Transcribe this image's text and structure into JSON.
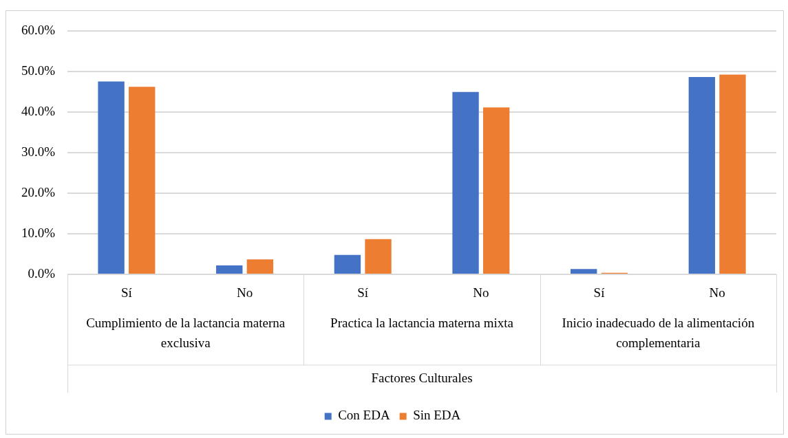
{
  "chart_data": {
    "type": "bar",
    "categories": [
      "Sí",
      "No",
      "Sí",
      "No",
      "Sí",
      "No"
    ],
    "series": [
      {
        "name": "Con EDA",
        "color": "#4472c4",
        "values": [
          47.6,
          2.2,
          4.8,
          45.0,
          1.3,
          48.7
        ]
      },
      {
        "name": "Sin EDA",
        "color": "#ed7d31",
        "values": [
          46.3,
          3.7,
          8.7,
          41.2,
          0.4,
          49.3
        ]
      }
    ],
    "ylim": [
      0,
      60
    ],
    "yticks": [
      {
        "value": 0,
        "label": "0.0%"
      },
      {
        "value": 10,
        "label": "10.0%"
      },
      {
        "value": 20,
        "label": "20.0%"
      },
      {
        "value": 30,
        "label": "30.0%"
      },
      {
        "value": 40,
        "label": "40.0%"
      },
      {
        "value": 50,
        "label": "50.0%"
      },
      {
        "value": 60,
        "label": "60.0%"
      }
    ],
    "grid": "y",
    "legend": "bottom",
    "annotations": [
      "Cumplimiento de la lactancia materna exclusiva",
      "Practica la lactancia materna mixta",
      "Inicio inadecuado de la alimentación complementaria",
      "Factores Culturales"
    ]
  }
}
